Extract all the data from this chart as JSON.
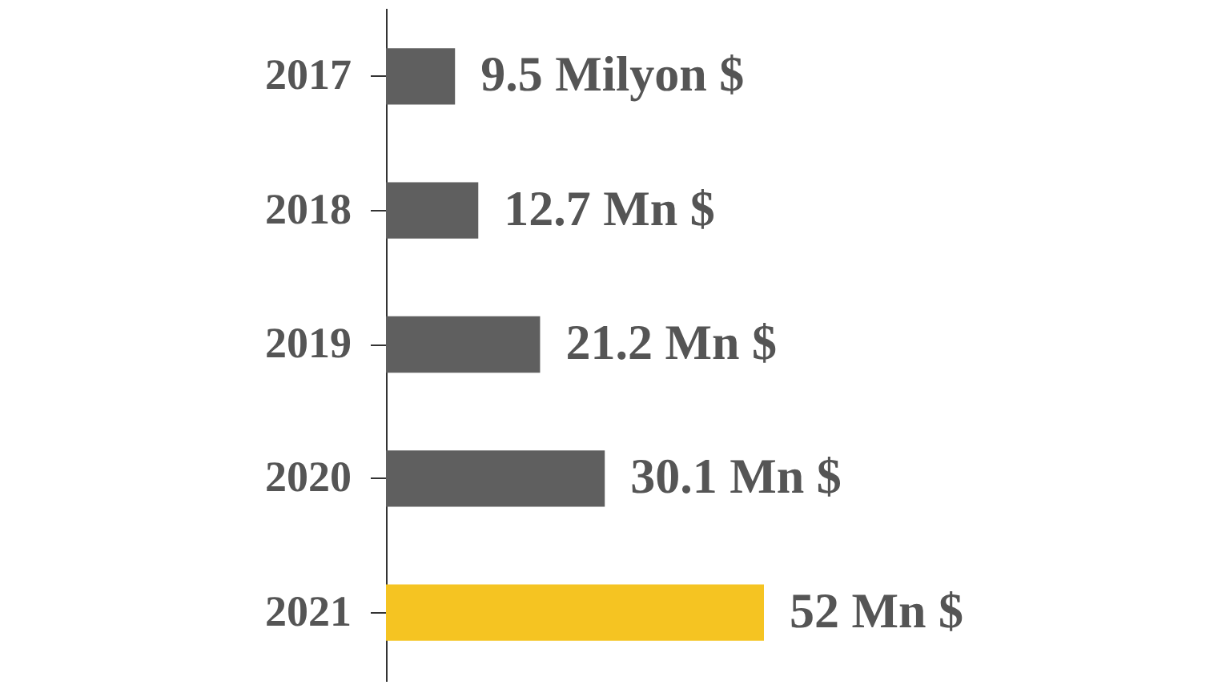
{
  "chart_data": {
    "type": "bar",
    "orientation": "horizontal",
    "categories": [
      "2017",
      "2018",
      "2019",
      "2020",
      "2021"
    ],
    "values": [
      9.5,
      12.7,
      21.2,
      30.1,
      52
    ],
    "colors": [
      "#5f5f5f",
      "#5f5f5f",
      "#5f5f5f",
      "#5f5f5f",
      "#f5c422"
    ],
    "value_labels": [
      "9.5 Milyon $",
      "12.7 Mn $",
      "21.2 Mn $",
      "30.1 Mn $",
      "52 Mn $"
    ]
  }
}
